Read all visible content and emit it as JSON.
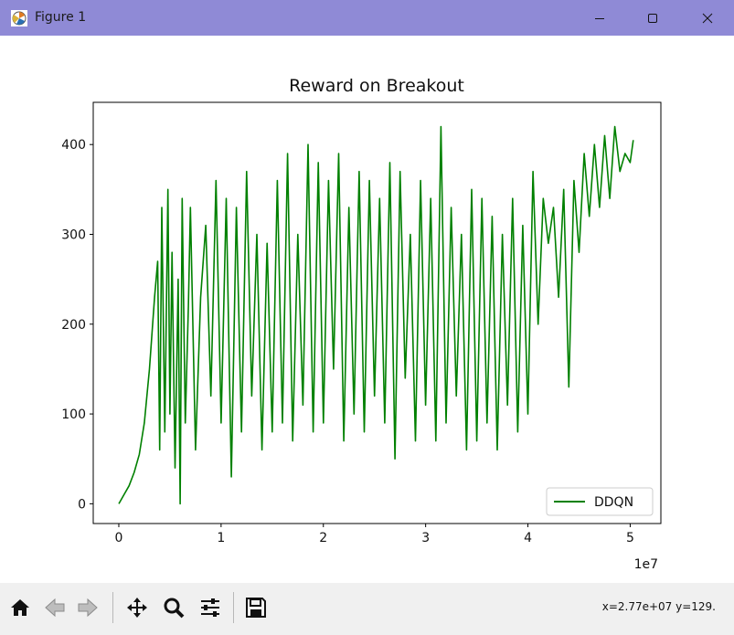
{
  "window": {
    "title": "Figure 1",
    "controls": [
      "minimize",
      "maximize",
      "close"
    ]
  },
  "toolbar": {
    "buttons": [
      "home-icon",
      "back-icon",
      "forward-icon",
      "pan-icon",
      "zoom-icon",
      "configure-subplots-icon",
      "save-icon"
    ],
    "coords_text": "x=2.77e+07 y=129."
  },
  "colors": {
    "series": "#008000",
    "titlebar": "#8f8ad6",
    "toolbar": "#f0f0f0"
  },
  "chart_data": {
    "type": "line",
    "title": "Reward on Breakout",
    "xlabel": "",
    "ylabel": "",
    "x_offset_label": "1e7",
    "xlim": [
      -0.25,
      5.3
    ],
    "ylim": [
      -22,
      447
    ],
    "xticks": [
      0,
      1,
      2,
      3,
      4,
      5
    ],
    "xtick_labels": [
      "0",
      "1",
      "2",
      "3",
      "4",
      "5"
    ],
    "yticks": [
      0,
      100,
      200,
      300,
      400
    ],
    "ytick_labels": [
      "0",
      "100",
      "200",
      "300",
      "400"
    ],
    "grid": false,
    "legend_position": "lower-right",
    "series": [
      {
        "name": "DDQN",
        "color": "#008000",
        "x": [
          0,
          0.05,
          0.1,
          0.15,
          0.2,
          0.25,
          0.3,
          0.35,
          0.38,
          0.4,
          0.42,
          0.45,
          0.48,
          0.5,
          0.52,
          0.55,
          0.58,
          0.6,
          0.62,
          0.65,
          0.68,
          0.7,
          0.75,
          0.8,
          0.85,
          0.9,
          0.95,
          1.0,
          1.05,
          1.1,
          1.15,
          1.2,
          1.25,
          1.3,
          1.35,
          1.4,
          1.45,
          1.5,
          1.55,
          1.6,
          1.65,
          1.7,
          1.75,
          1.8,
          1.85,
          1.9,
          1.95,
          2.0,
          2.05,
          2.1,
          2.15,
          2.2,
          2.25,
          2.3,
          2.35,
          2.4,
          2.45,
          2.5,
          2.55,
          2.6,
          2.65,
          2.7,
          2.75,
          2.8,
          2.85,
          2.9,
          2.95,
          3.0,
          3.05,
          3.1,
          3.15,
          3.2,
          3.25,
          3.3,
          3.35,
          3.4,
          3.45,
          3.5,
          3.55,
          3.6,
          3.65,
          3.7,
          3.75,
          3.8,
          3.85,
          3.9,
          3.95,
          4.0,
          4.05,
          4.1,
          4.15,
          4.2,
          4.25,
          4.3,
          4.35,
          4.4,
          4.45,
          4.5,
          4.55,
          4.6,
          4.65,
          4.7,
          4.75,
          4.8,
          4.85,
          4.9,
          4.95,
          5.0,
          5.03
        ],
        "values": [
          0,
          10,
          20,
          35,
          55,
          90,
          150,
          230,
          270,
          60,
          330,
          80,
          350,
          100,
          280,
          40,
          250,
          0,
          340,
          90,
          220,
          330,
          60,
          230,
          310,
          120,
          360,
          90,
          340,
          30,
          330,
          80,
          370,
          120,
          300,
          60,
          290,
          80,
          360,
          90,
          390,
          70,
          300,
          110,
          400,
          80,
          380,
          90,
          360,
          150,
          390,
          70,
          330,
          100,
          370,
          80,
          360,
          120,
          340,
          90,
          380,
          50,
          370,
          140,
          300,
          70,
          360,
          110,
          340,
          70,
          420,
          90,
          330,
          120,
          300,
          60,
          350,
          70,
          340,
          90,
          320,
          60,
          300,
          110,
          340,
          80,
          310,
          100,
          370,
          200,
          340,
          290,
          330,
          230,
          350,
          130,
          360,
          280,
          390,
          320,
          400,
          330,
          410,
          340,
          420,
          370,
          390,
          380,
          405
        ]
      }
    ]
  }
}
